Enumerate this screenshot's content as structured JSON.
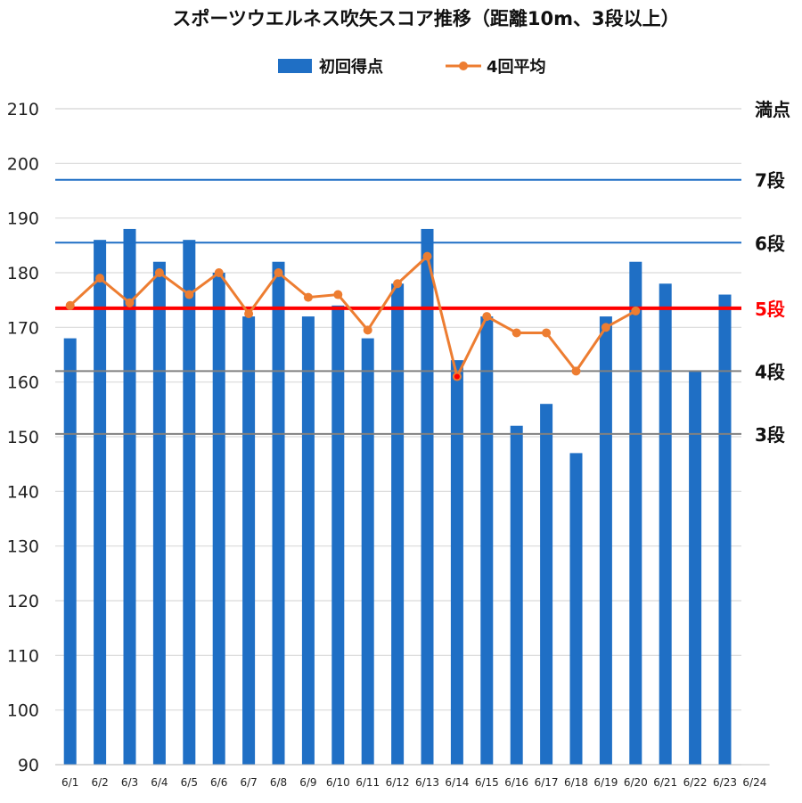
{
  "chart_data": {
    "type": "bar",
    "title": "スポーツウエルネス吹矢スコア推移（距離10m、3段以上）",
    "xlabel": "",
    "ylabel": "",
    "ylim": [
      90,
      210
    ],
    "yticks": [
      90,
      100,
      110,
      120,
      130,
      140,
      150,
      160,
      170,
      180,
      190,
      200,
      210
    ],
    "grid": true,
    "legend_position": "top-center",
    "categories": [
      "6/1",
      "6/2",
      "6/3",
      "6/4",
      "6/5",
      "6/6",
      "6/7",
      "6/8",
      "6/9",
      "6/10",
      "6/11",
      "6/12",
      "6/13",
      "6/14",
      "6/15",
      "6/16",
      "6/17",
      "6/18",
      "6/19",
      "6/20",
      "6/21",
      "6/22",
      "6/23",
      "6/24"
    ],
    "series": [
      {
        "name": "初回得点",
        "type": "bar",
        "color": "#1f6fc5",
        "values": [
          168,
          186,
          188,
          182,
          186,
          180,
          172,
          182,
          172,
          174,
          168,
          178,
          188,
          164,
          172,
          152,
          156,
          147,
          172,
          182,
          178,
          162,
          176,
          null
        ]
      },
      {
        "name": "4回平均",
        "type": "line",
        "color": "#ed7d31",
        "values": [
          174,
          179,
          174.5,
          180,
          176,
          180,
          172.5,
          180,
          175.5,
          176,
          169.5,
          178,
          183,
          161,
          172,
          169,
          169,
          162,
          170,
          173,
          null,
          null,
          null,
          null
        ]
      }
    ],
    "highlight_point": {
      "category": "6/14",
      "color": "#ff0000"
    },
    "reference_lines": [
      {
        "label": "満点",
        "value": 210,
        "color": "#d9d9d9",
        "width": 1.2
      },
      {
        "label": "7段",
        "value": 197,
        "color": "#1f6fc5",
        "width": 2
      },
      {
        "label": "6段",
        "value": 185.5,
        "color": "#1f6fc5",
        "width": 2
      },
      {
        "label": "5段",
        "value": 173.5,
        "color": "#ff0000",
        "width": 4
      },
      {
        "label": "4段",
        "value": 162,
        "color": "#808080",
        "width": 2
      },
      {
        "label": "3段",
        "value": 150.5,
        "color": "#808080",
        "width": 2
      }
    ],
    "reference_label_colors": {
      "5段": "#ff0000"
    }
  }
}
